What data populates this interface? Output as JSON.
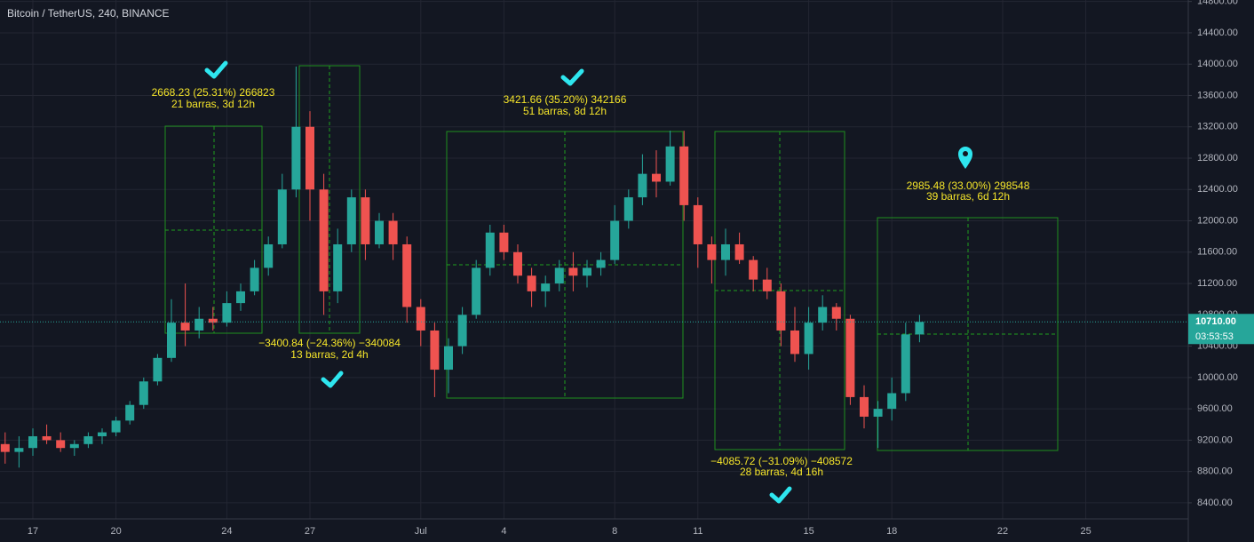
{
  "header": {
    "symbol": "Bitcoin / TetherUS, 240, BINANCE"
  },
  "chart_data": {
    "type": "candlestick",
    "categories": [
      null,
      null,
      "17",
      null,
      null,
      null,
      null,
      null,
      "20",
      null,
      null,
      null,
      null,
      null,
      null,
      null,
      "24",
      null,
      null,
      null,
      null,
      null,
      "27",
      null,
      null,
      null,
      null,
      null,
      null,
      null,
      "Jul",
      null,
      null,
      null,
      null,
      null,
      "4",
      null,
      null,
      null,
      null,
      null,
      null,
      null,
      "8",
      null,
      null,
      null,
      null,
      null,
      "11",
      null,
      null,
      null,
      null,
      null,
      null,
      null,
      "15",
      null,
      null,
      null,
      null,
      null,
      "18",
      null,
      null,
      null,
      null,
      null,
      null,
      null,
      "22",
      null,
      null,
      null,
      null,
      null,
      "25",
      null
    ],
    "open": [
      9150,
      9050,
      9100,
      9250,
      9200,
      9100,
      9150,
      9250,
      9300,
      9450,
      9650,
      9950,
      10250,
      10700,
      10600,
      10750,
      10700,
      10950,
      11100,
      11400,
      11700,
      12400,
      13200,
      12400,
      11100,
      11700,
      12300,
      11700,
      12000,
      11700,
      10900,
      10600,
      10100,
      10400,
      10800,
      11400,
      11850,
      11600,
      11300,
      11100,
      11200,
      11400,
      11300,
      11400,
      11500,
      12000,
      12300,
      12600,
      12500,
      12950,
      12200,
      11700,
      11500,
      11700,
      11500,
      11250,
      11100,
      10600,
      10300,
      10700,
      10900,
      10750,
      9750,
      9500,
      9600,
      9800,
      10550,
      null,
      null,
      null,
      null,
      null,
      null,
      null,
      null,
      null,
      null,
      null,
      null,
      null
    ],
    "high": [
      9300,
      9250,
      9350,
      9400,
      9300,
      9200,
      9300,
      9350,
      9500,
      9700,
      10000,
      10300,
      11000,
      11200,
      10900,
      10900,
      11100,
      11200,
      11500,
      11800,
      12600,
      13970,
      13400,
      12600,
      11900,
      12400,
      12400,
      12100,
      12100,
      11800,
      11000,
      10700,
      10500,
      10900,
      11500,
      11950,
      11950,
      11700,
      11400,
      11300,
      11500,
      11600,
      11500,
      11600,
      12200,
      12400,
      12850,
      12900,
      13150,
      13150,
      12300,
      11800,
      11900,
      11850,
      11550,
      11400,
      11200,
      10900,
      10900,
      11050,
      10950,
      10800,
      9900,
      9700,
      10000,
      10700,
      10800,
      null,
      null,
      null,
      null,
      null,
      null,
      null,
      null,
      null,
      null,
      null,
      null,
      null
    ],
    "low": [
      8900,
      8850,
      9000,
      9150,
      9050,
      9000,
      9100,
      9150,
      9250,
      9400,
      9600,
      9900,
      10200,
      10400,
      10500,
      10600,
      10650,
      10850,
      11050,
      11300,
      11650,
      12300,
      12000,
      10800,
      10950,
      11600,
      11500,
      11650,
      11500,
      10700,
      10400,
      9750,
      9800,
      10300,
      10750,
      11300,
      11500,
      11200,
      10900,
      10900,
      11100,
      11100,
      11150,
      11300,
      11450,
      11900,
      12200,
      12300,
      12450,
      12000,
      11400,
      11200,
      11300,
      11450,
      11100,
      11000,
      10400,
      10200,
      10100,
      10600,
      10600,
      9650,
      9350,
      9100,
      9450,
      9700,
      10450,
      null,
      null,
      null,
      null,
      null,
      null,
      null,
      null,
      null,
      null,
      null,
      null,
      null
    ],
    "close": [
      9050,
      9100,
      9250,
      9200,
      9100,
      9150,
      9250,
      9300,
      9450,
      9650,
      9950,
      10250,
      10700,
      10600,
      10750,
      10700,
      10950,
      11100,
      11400,
      11700,
      12400,
      13200,
      12400,
      11100,
      11700,
      12300,
      11700,
      12000,
      11700,
      10900,
      10600,
      10100,
      10400,
      10800,
      11400,
      11850,
      11600,
      11300,
      11100,
      11200,
      11400,
      11300,
      11400,
      11500,
      12000,
      12300,
      12600,
      12500,
      12950,
      12200,
      11700,
      11500,
      11700,
      11500,
      11250,
      11100,
      10600,
      10300,
      10700,
      10900,
      10750,
      9750,
      9500,
      9600,
      9800,
      10550,
      10710,
      null,
      null,
      null,
      null,
      null,
      null,
      null,
      null,
      null,
      null,
      null,
      null,
      null
    ],
    "up_color": "#26a69a",
    "down_color": "#ef5350",
    "ylim": [
      8195,
      14819
    ],
    "yticks": [
      {
        "value": 8400,
        "label": "8400.00"
      },
      {
        "value": 8800,
        "label": "8800.00"
      },
      {
        "value": 9200,
        "label": "9200.00"
      },
      {
        "value": 9600,
        "label": "9600.00"
      },
      {
        "value": 10000,
        "label": "10000.00"
      },
      {
        "value": 10400,
        "label": "10400.00"
      },
      {
        "value": 10800,
        "label": "10800.00"
      },
      {
        "value": 11200,
        "label": "11200.00"
      },
      {
        "value": 11600,
        "label": "11600.00"
      },
      {
        "value": 12000,
        "label": "12000.00"
      },
      {
        "value": 12400,
        "label": "12400.00"
      },
      {
        "value": 12800,
        "label": "12800.00"
      },
      {
        "value": 13200,
        "label": "13200.00"
      },
      {
        "value": 13600,
        "label": "13600.00"
      },
      {
        "value": 14000,
        "label": "14000.00"
      },
      {
        "value": 14400,
        "label": "14400.00"
      },
      {
        "value": 14800,
        "label": "14800.00"
      }
    ],
    "grid": true,
    "last_price": {
      "value": 10710,
      "label": "10710.00"
    },
    "countdown": "03:53:53",
    "annotations": [
      [
        "2668.23 (25.31%) 266823",
        "21 barras, 3d 12h"
      ],
      [
        "−3400.84 (−24.36%) −340084",
        "13 barras, 2d 4h"
      ],
      [
        "3421.66 (35.20%) 342166",
        "51 barras, 8d 12h"
      ],
      [
        "−4085.72 (−31.09%) −408572",
        "28 barras, 4d 16h"
      ],
      [
        "2985.48 (33.00%) 298548",
        "39 barras, 6d 12h"
      ]
    ]
  }
}
